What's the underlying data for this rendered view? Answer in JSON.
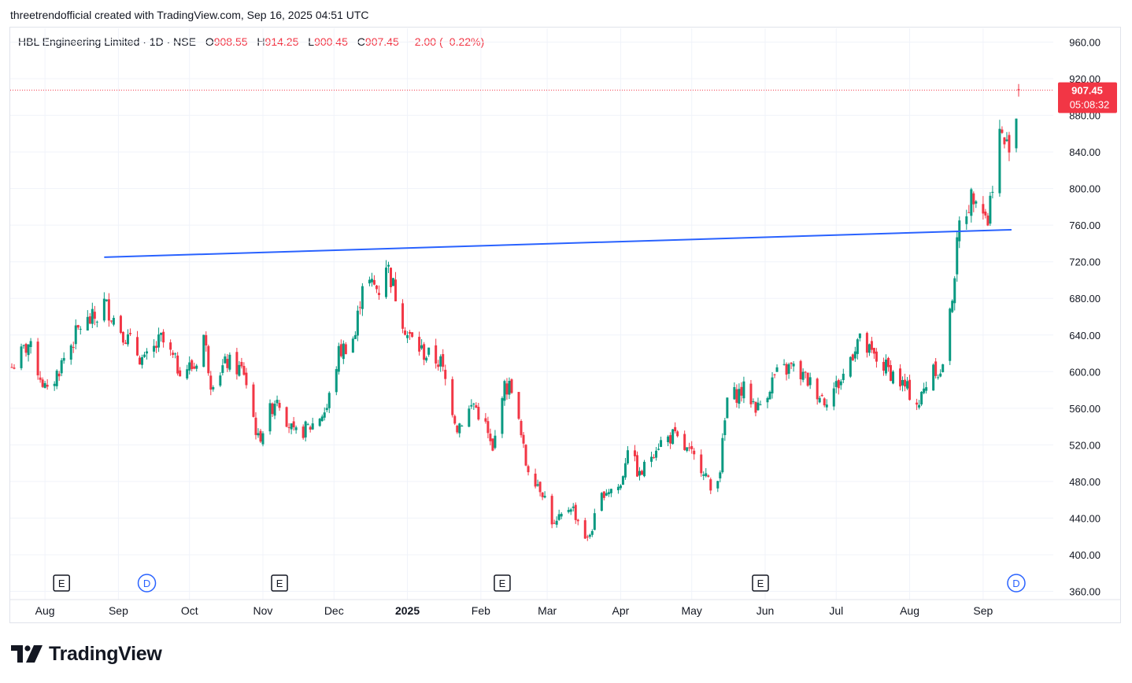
{
  "header": {
    "created_text": "threetrendofficial created with TradingView.com, Sep 16, 2025 04:51 UTC"
  },
  "legend": {
    "symbol": "HBL Engineering Limited · 1D · NSE",
    "open_label": "O",
    "open": "908.55",
    "high_label": "H",
    "high": "914.25",
    "low_label": "L",
    "low": "900.45",
    "close_label": "C",
    "close": "907.45",
    "change": "−2.00 (−0.22%)"
  },
  "price_tag": {
    "price": "907.45",
    "countdown": "05:08:32"
  },
  "brand": {
    "name": "TradingView"
  },
  "colors": {
    "up": "#089981",
    "down": "#f23645",
    "trendline": "#2962ff",
    "grid": "#f0f3fa",
    "event": "#2962ff"
  },
  "chart_data": {
    "type": "candlestick",
    "symbol": "HBL Engineering Limited",
    "interval": "1D",
    "exchange": "NSE",
    "ylim": [
      360,
      970
    ],
    "y_ticks": [
      "360.00",
      "400.00",
      "440.00",
      "480.00",
      "520.00",
      "560.00",
      "600.00",
      "640.00",
      "680.00",
      "720.00",
      "760.00",
      "800.00",
      "840.00",
      "880.00",
      "920.00",
      "960.00"
    ],
    "x_ticks": [
      {
        "date": "2024-08-01",
        "label": "Aug"
      },
      {
        "date": "2024-09-01",
        "label": "Sep"
      },
      {
        "date": "2024-10-01",
        "label": "Oct"
      },
      {
        "date": "2024-11-01",
        "label": "Nov"
      },
      {
        "date": "2024-12-01",
        "label": "Dec"
      },
      {
        "date": "2025-01-01",
        "label": "2025"
      },
      {
        "date": "2025-02-01",
        "label": "Feb"
      },
      {
        "date": "2025-03-01",
        "label": "Mar"
      },
      {
        "date": "2025-04-01",
        "label": "Apr"
      },
      {
        "date": "2025-05-01",
        "label": "May"
      },
      {
        "date": "2025-06-01",
        "label": "Jun"
      },
      {
        "date": "2025-07-01",
        "label": "Jul"
      },
      {
        "date": "2025-08-01",
        "label": "Aug"
      },
      {
        "date": "2025-09-01",
        "label": "Sep"
      }
    ],
    "last_price": 907.45,
    "trendline": {
      "start": {
        "date": "2024-08-26",
        "price": 725
      },
      "end": {
        "date": "2025-09-13",
        "price": 755
      }
    },
    "events": [
      {
        "type": "E",
        "date": "2024-08-08"
      },
      {
        "type": "D",
        "date": "2024-09-13"
      },
      {
        "type": "E",
        "date": "2024-11-08"
      },
      {
        "type": "E",
        "date": "2025-02-10"
      },
      {
        "type": "E",
        "date": "2025-05-30"
      },
      {
        "type": "D",
        "date": "2025-09-15"
      }
    ],
    "price_path": [
      {
        "date": "2024-07-18",
        "price": 605
      },
      {
        "date": "2024-07-25",
        "price": 630
      },
      {
        "date": "2024-08-02",
        "price": 575
      },
      {
        "date": "2024-08-09",
        "price": 615
      },
      {
        "date": "2024-08-16",
        "price": 650
      },
      {
        "date": "2024-08-23",
        "price": 660
      },
      {
        "date": "2024-08-26",
        "price": 675
      },
      {
        "date": "2024-09-05",
        "price": 635
      },
      {
        "date": "2024-09-12",
        "price": 610
      },
      {
        "date": "2024-09-19",
        "price": 635
      },
      {
        "date": "2024-09-26",
        "price": 605
      },
      {
        "date": "2024-10-03",
        "price": 605
      },
      {
        "date": "2024-10-07",
        "price": 640
      },
      {
        "date": "2024-10-10",
        "price": 590
      },
      {
        "date": "2024-10-17",
        "price": 610
      },
      {
        "date": "2024-10-24",
        "price": 600
      },
      {
        "date": "2024-10-30",
        "price": 525
      },
      {
        "date": "2024-11-07",
        "price": 575
      },
      {
        "date": "2024-11-14",
        "price": 530
      },
      {
        "date": "2024-11-21",
        "price": 540
      },
      {
        "date": "2024-11-28",
        "price": 560
      },
      {
        "date": "2024-12-03",
        "price": 620
      },
      {
        "date": "2024-12-10",
        "price": 640
      },
      {
        "date": "2024-12-13",
        "price": 700
      },
      {
        "date": "2024-12-20",
        "price": 690
      },
      {
        "date": "2024-12-23",
        "price": 720
      },
      {
        "date": "2025-01-01",
        "price": 640
      },
      {
        "date": "2025-01-08",
        "price": 620
      },
      {
        "date": "2025-01-15",
        "price": 610
      },
      {
        "date": "2025-01-22",
        "price": 540
      },
      {
        "date": "2025-01-29",
        "price": 565
      },
      {
        "date": "2025-02-03",
        "price": 540
      },
      {
        "date": "2025-02-06",
        "price": 510
      },
      {
        "date": "2025-02-10",
        "price": 580
      },
      {
        "date": "2025-02-14",
        "price": 585
      },
      {
        "date": "2025-02-20",
        "price": 500
      },
      {
        "date": "2025-02-27",
        "price": 470
      },
      {
        "date": "2025-03-04",
        "price": 430
      },
      {
        "date": "2025-03-11",
        "price": 455
      },
      {
        "date": "2025-03-18",
        "price": 415
      },
      {
        "date": "2025-03-25",
        "price": 470
      },
      {
        "date": "2025-04-01",
        "price": 475
      },
      {
        "date": "2025-04-04",
        "price": 520
      },
      {
        "date": "2025-04-09",
        "price": 485
      },
      {
        "date": "2025-04-16",
        "price": 520
      },
      {
        "date": "2025-04-23",
        "price": 530
      },
      {
        "date": "2025-04-30",
        "price": 510
      },
      {
        "date": "2025-05-06",
        "price": 495
      },
      {
        "date": "2025-05-09",
        "price": 470
      },
      {
        "date": "2025-05-13",
        "price": 495
      },
      {
        "date": "2025-05-16",
        "price": 570
      },
      {
        "date": "2025-05-23",
        "price": 580
      },
      {
        "date": "2025-05-29",
        "price": 560
      },
      {
        "date": "2025-06-05",
        "price": 595
      },
      {
        "date": "2025-06-12",
        "price": 605
      },
      {
        "date": "2025-06-19",
        "price": 590
      },
      {
        "date": "2025-06-26",
        "price": 570
      },
      {
        "date": "2025-07-03",
        "price": 590
      },
      {
        "date": "2025-07-10",
        "price": 635
      },
      {
        "date": "2025-07-17",
        "price": 615
      },
      {
        "date": "2025-07-24",
        "price": 600
      },
      {
        "date": "2025-07-31",
        "price": 580
      },
      {
        "date": "2025-08-05",
        "price": 565
      },
      {
        "date": "2025-08-11",
        "price": 610
      },
      {
        "date": "2025-08-14",
        "price": 595
      },
      {
        "date": "2025-08-18",
        "price": 660
      },
      {
        "date": "2025-08-22",
        "price": 760
      },
      {
        "date": "2025-08-27",
        "price": 790
      },
      {
        "date": "2025-08-29",
        "price": 800
      },
      {
        "date": "2025-09-03",
        "price": 765
      },
      {
        "date": "2025-09-05",
        "price": 810
      },
      {
        "date": "2025-09-08",
        "price": 860
      },
      {
        "date": "2025-09-11",
        "price": 845
      },
      {
        "date": "2025-09-15",
        "price": 880
      },
      {
        "date": "2025-09-16",
        "price": 907.45
      }
    ]
  }
}
